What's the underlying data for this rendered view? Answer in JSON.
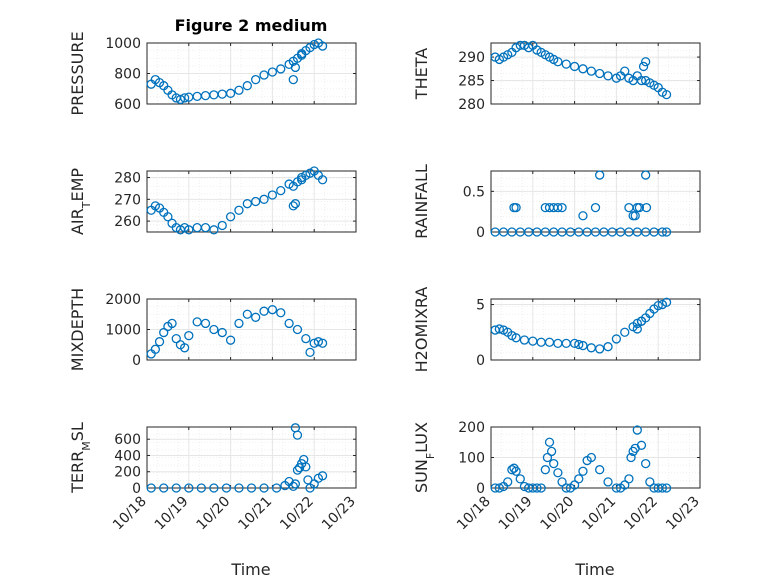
{
  "figure": {
    "title": "Figure 2 medium",
    "xlabel": "Time",
    "marker_color": "#0072bd",
    "xlim": [
      0,
      5
    ],
    "xticks": [
      0,
      1,
      2,
      3,
      4,
      5
    ],
    "xtick_labels": [
      "10/18",
      "10/19",
      "10/20",
      "10/21",
      "10/22",
      "10/23"
    ]
  },
  "chart_data": [
    {
      "type": "scatter",
      "name": "pressure",
      "ylabel": "PRESSURE",
      "ylim": [
        600,
        1000
      ],
      "yticks": [
        600,
        800,
        1000
      ],
      "grid": true,
      "x": [
        0.1,
        0.2,
        0.3,
        0.4,
        0.5,
        0.6,
        0.7,
        0.8,
        0.9,
        1.0,
        1.2,
        1.4,
        1.6,
        1.8,
        2.0,
        2.2,
        2.4,
        2.6,
        2.8,
        3.0,
        3.2,
        3.4,
        3.5,
        3.6,
        3.7,
        3.8,
        3.9,
        4.0,
        4.1,
        4.2,
        3.55,
        3.5,
        3.7
      ],
      "y": [
        730,
        760,
        740,
        720,
        690,
        660,
        640,
        630,
        640,
        645,
        650,
        655,
        660,
        665,
        670,
        690,
        720,
        760,
        790,
        810,
        830,
        860,
        880,
        900,
        930,
        950,
        970,
        990,
        1000,
        980,
        840,
        760,
        920
      ]
    },
    {
      "type": "scatter",
      "name": "theta",
      "ylabel": "THETA",
      "ylim": [
        280,
        293
      ],
      "yticks": [
        280,
        285,
        290
      ],
      "grid": true,
      "x": [
        0.1,
        0.2,
        0.3,
        0.4,
        0.5,
        0.6,
        0.7,
        0.8,
        0.9,
        1.0,
        1.1,
        1.2,
        1.3,
        1.4,
        1.5,
        1.6,
        1.8,
        2.0,
        2.2,
        2.4,
        2.6,
        2.8,
        3.0,
        3.1,
        3.2,
        3.3,
        3.4,
        3.5,
        3.6,
        3.7,
        3.8,
        3.9,
        4.0,
        4.1,
        4.2,
        3.7,
        3.65
      ],
      "y": [
        290,
        289.5,
        290,
        290.5,
        291,
        292,
        292.5,
        292.5,
        292,
        292.5,
        291.5,
        291,
        290.5,
        290,
        289.5,
        289,
        288.5,
        288,
        287.5,
        287,
        286.5,
        286,
        285.5,
        286,
        287,
        285.5,
        285,
        286,
        285,
        285,
        284.5,
        284,
        283.5,
        282.5,
        282,
        289,
        288
      ]
    },
    {
      "type": "scatter",
      "name": "air_temp",
      "ylabel": "AIR_TEMP",
      "ylim": [
        255,
        283
      ],
      "yticks": [
        260,
        270,
        280
      ],
      "grid": true,
      "x": [
        0.1,
        0.2,
        0.3,
        0.4,
        0.5,
        0.6,
        0.7,
        0.8,
        0.9,
        1.0,
        1.2,
        1.4,
        1.6,
        1.8,
        2.0,
        2.2,
        2.4,
        2.6,
        2.8,
        3.0,
        3.2,
        3.4,
        3.5,
        3.6,
        3.7,
        3.8,
        3.9,
        4.0,
        4.1,
        4.2,
        3.55,
        3.5,
        3.7
      ],
      "y": [
        265,
        267,
        266,
        264,
        262,
        259,
        257,
        256,
        257,
        256,
        257,
        257,
        256,
        258,
        262,
        265,
        268,
        269,
        270,
        272,
        274,
        277,
        276,
        278,
        279,
        281,
        282,
        283,
        281,
        279,
        268,
        267,
        280
      ]
    },
    {
      "type": "scatter",
      "name": "rainfall",
      "ylabel": "RAINFALL",
      "ylim": [
        0,
        0.75
      ],
      "yticks": [
        0,
        0.5
      ],
      "grid": true,
      "x": [
        0.1,
        0.3,
        0.5,
        0.7,
        0.9,
        1.1,
        1.3,
        1.5,
        1.7,
        1.9,
        2.1,
        2.3,
        2.5,
        2.7,
        2.9,
        3.1,
        3.3,
        3.5,
        3.7,
        3.9,
        4.1,
        4.2,
        0.55,
        0.6,
        1.3,
        1.4,
        1.5,
        1.6,
        1.7,
        2.2,
        2.5,
        2.6,
        3.3,
        3.4,
        3.45,
        3.5,
        3.55,
        3.7,
        3.72
      ],
      "y": [
        0,
        0,
        0,
        0,
        0,
        0,
        0,
        0,
        0,
        0,
        0,
        0,
        0,
        0,
        0,
        0,
        0,
        0,
        0,
        0,
        0,
        0,
        0.3,
        0.3,
        0.3,
        0.3,
        0.3,
        0.3,
        0.3,
        0.2,
        0.3,
        0.7,
        0.3,
        0.2,
        0.2,
        0.3,
        0.3,
        0.7,
        0.3
      ]
    },
    {
      "type": "scatter",
      "name": "mixdepth",
      "ylabel": "MIXDEPTH",
      "ylim": [
        0,
        2000
      ],
      "yticks": [
        0,
        1000,
        2000
      ],
      "grid": true,
      "x": [
        0.1,
        0.2,
        0.3,
        0.4,
        0.5,
        0.6,
        0.7,
        0.8,
        0.9,
        1.0,
        1.2,
        1.4,
        1.6,
        1.8,
        2.0,
        2.2,
        2.4,
        2.6,
        2.8,
        3.0,
        3.2,
        3.4,
        3.6,
        3.8,
        3.9,
        4.0,
        4.1,
        4.2
      ],
      "y": [
        200,
        350,
        600,
        900,
        1100,
        1200,
        700,
        500,
        400,
        800,
        1250,
        1200,
        1000,
        900,
        650,
        1200,
        1500,
        1400,
        1600,
        1650,
        1550,
        1200,
        1000,
        700,
        250,
        550,
        600,
        550
      ]
    },
    {
      "type": "scatter",
      "name": "h2omixra",
      "ylabel": "H2OMIXRA",
      "ylim": [
        0,
        5.5
      ],
      "yticks": [
        0,
        5
      ],
      "grid": true,
      "x": [
        0.1,
        0.2,
        0.3,
        0.4,
        0.5,
        0.6,
        0.8,
        1.0,
        1.2,
        1.4,
        1.6,
        1.8,
        2.0,
        2.1,
        2.2,
        2.4,
        2.6,
        2.8,
        3.0,
        3.2,
        3.4,
        3.5,
        3.6,
        3.7,
        3.8,
        3.9,
        4.0,
        4.1,
        4.2,
        3.5,
        3.6
      ],
      "y": [
        2.7,
        2.8,
        2.7,
        2.5,
        2.2,
        2.0,
        1.8,
        1.7,
        1.6,
        1.6,
        1.5,
        1.5,
        1.5,
        1.4,
        1.3,
        1.1,
        1.0,
        1.2,
        1.9,
        2.5,
        3.0,
        3.3,
        3.5,
        3.8,
        4.2,
        4.6,
        4.9,
        5.0,
        5.2,
        2.8,
        3.5
      ]
    },
    {
      "type": "scatter",
      "name": "terr_msl",
      "ylabel": "TERR_MSL",
      "ylim": [
        0,
        750
      ],
      "yticks": [
        0,
        200,
        400,
        600
      ],
      "grid": true,
      "x": [
        0.1,
        0.4,
        0.7,
        1.0,
        1.3,
        1.6,
        1.9,
        2.2,
        2.5,
        2.8,
        3.1,
        3.3,
        3.4,
        3.5,
        3.55,
        3.6,
        3.65,
        3.7,
        3.75,
        3.8,
        3.85,
        3.9,
        4.0,
        4.1,
        4.2,
        3.55,
        3.6
      ],
      "y": [
        0,
        0,
        0,
        0,
        0,
        0,
        0,
        0,
        0,
        0,
        0,
        30,
        80,
        20,
        740,
        650,
        250,
        300,
        350,
        260,
        100,
        0,
        50,
        120,
        150,
        50,
        220
      ]
    },
    {
      "type": "scatter",
      "name": "sun_flux",
      "ylabel": "SUN_FLUX",
      "ylim": [
        0,
        200
      ],
      "yticks": [
        0,
        100,
        200
      ],
      "grid": true,
      "x": [
        0.1,
        0.2,
        0.3,
        0.4,
        0.5,
        0.55,
        0.6,
        0.7,
        0.8,
        0.9,
        1.0,
        1.1,
        1.2,
        1.3,
        1.35,
        1.4,
        1.45,
        1.5,
        1.6,
        1.7,
        1.8,
        1.9,
        2.0,
        2.1,
        2.2,
        2.3,
        2.4,
        2.6,
        2.8,
        3.0,
        3.1,
        3.2,
        3.3,
        3.35,
        3.4,
        3.45,
        3.5,
        3.6,
        3.7,
        3.8,
        3.9,
        4.0,
        4.1,
        4.2
      ],
      "y": [
        0,
        0,
        5,
        20,
        60,
        65,
        55,
        30,
        5,
        0,
        0,
        0,
        0,
        60,
        100,
        150,
        120,
        80,
        50,
        20,
        0,
        0,
        10,
        30,
        55,
        90,
        100,
        60,
        20,
        0,
        0,
        10,
        30,
        100,
        120,
        130,
        190,
        140,
        80,
        20,
        0,
        0,
        0,
        0
      ]
    }
  ]
}
